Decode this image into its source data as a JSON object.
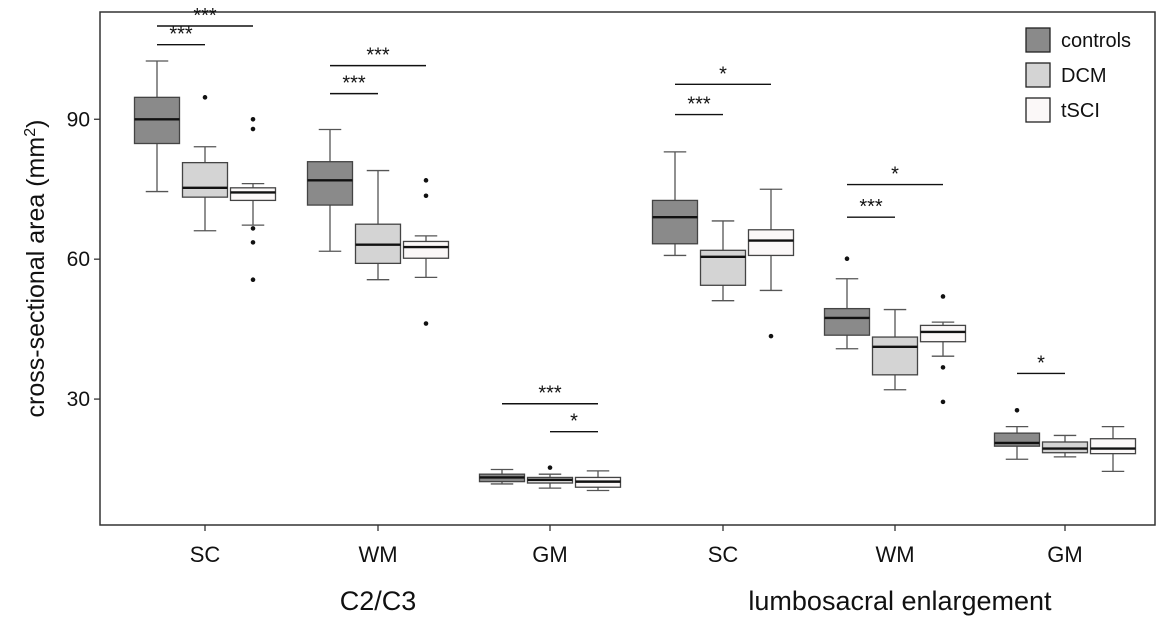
{
  "chart_data": {
    "type": "box",
    "ylabel": "cross-sectional area (mm",
    "ylabel_sup": "2",
    "ylabel_close": ")",
    "ylim": [
      3,
      113
    ],
    "yticks": [
      30,
      60,
      90
    ],
    "grid": false,
    "legend_position": "top-right",
    "series": [
      {
        "name": "controls",
        "color": "#8a8a8a"
      },
      {
        "name": "DCM",
        "color": "#d4d4d4"
      },
      {
        "name": "tSCI",
        "color": "#fbf8f8"
      }
    ],
    "regions": [
      "C2/C3",
      "lumbosacral enlargement"
    ],
    "categories": [
      "SC",
      "WM",
      "GM",
      "SC",
      "WM",
      "GM"
    ],
    "groups": [
      {
        "label": "SC",
        "region": "C2/C3",
        "boxes": [
          {
            "series": "controls",
            "whisker_low": 74.5,
            "q1": 84.8,
            "median": 90,
            "q3": 94.7,
            "whisker_high": 102.5,
            "outliers": []
          },
          {
            "series": "DCM",
            "whisker_low": 66.1,
            "q1": 73.3,
            "median": 75.3,
            "q3": 80.7,
            "whisker_high": 84.1,
            "outliers": [
              94.7
            ]
          },
          {
            "series": "tSCI",
            "whisker_low": 67.3,
            "q1": 72.6,
            "median": 74.3,
            "q3": 75.3,
            "whisker_high": 76.2,
            "outliers": [
              90.0,
              87.9,
              66.6,
              63.6,
              55.6
            ]
          }
        ]
      },
      {
        "label": "WM",
        "region": "C2/C3",
        "boxes": [
          {
            "series": "controls",
            "whisker_low": 61.7,
            "q1": 71.6,
            "median": 76.9,
            "q3": 80.9,
            "whisker_high": 87.8,
            "outliers": []
          },
          {
            "series": "DCM",
            "whisker_low": 55.6,
            "q1": 59.1,
            "median": 63.1,
            "q3": 67.5,
            "whisker_high": 79.0,
            "outliers": []
          },
          {
            "series": "tSCI",
            "whisker_low": 56.1,
            "q1": 60.2,
            "median": 62.6,
            "q3": 63.8,
            "whisker_high": 65.0,
            "outliers": [
              76.9,
              73.6,
              46.2
            ]
          }
        ]
      },
      {
        "label": "GM",
        "region": "C2/C3",
        "boxes": [
          {
            "series": "controls",
            "whisker_low": 11.8,
            "q1": 12.3,
            "median": 13.2,
            "q3": 13.9,
            "whisker_high": 14.9,
            "outliers": []
          },
          {
            "series": "DCM",
            "whisker_low": 10.9,
            "q1": 12.0,
            "median": 12.7,
            "q3": 13.2,
            "whisker_high": 13.9,
            "outliers": [
              15.3
            ]
          },
          {
            "series": "tSCI",
            "whisker_low": 10.4,
            "q1": 11.1,
            "median": 12.3,
            "q3": 13.2,
            "whisker_high": 14.6,
            "outliers": []
          }
        ]
      },
      {
        "label": "SC",
        "region": "lumbosacral enlargement",
        "boxes": [
          {
            "series": "controls",
            "whisker_low": 60.8,
            "q1": 63.3,
            "median": 69.0,
            "q3": 72.6,
            "whisker_high": 83.0,
            "outliers": []
          },
          {
            "series": "DCM",
            "whisker_low": 51.1,
            "q1": 54.4,
            "median": 60.5,
            "q3": 61.9,
            "whisker_high": 68.2,
            "outliers": []
          },
          {
            "series": "tSCI",
            "whisker_low": 53.3,
            "q1": 60.8,
            "median": 64.0,
            "q3": 66.3,
            "whisker_high": 75.0,
            "outliers": [
              43.5
            ]
          }
        ]
      },
      {
        "label": "WM",
        "region": "lumbosacral enlargement",
        "boxes": [
          {
            "series": "controls",
            "whisker_low": 40.8,
            "q1": 43.7,
            "median": 47.4,
            "q3": 49.4,
            "whisker_high": 55.8,
            "outliers": [
              60.1
            ]
          },
          {
            "series": "DCM",
            "whisker_low": 32.0,
            "q1": 35.2,
            "median": 41.2,
            "q3": 43.3,
            "whisker_high": 49.2,
            "outliers": []
          },
          {
            "series": "tSCI",
            "whisker_low": 39.2,
            "q1": 42.3,
            "median": 44.4,
            "q3": 45.8,
            "whisker_high": 46.5,
            "outliers": [
              52.0,
              36.8,
              29.4
            ]
          }
        ]
      },
      {
        "label": "GM",
        "region": "lumbosacral enlargement",
        "boxes": [
          {
            "series": "controls",
            "whisker_low": 17.1,
            "q1": 19.9,
            "median": 20.6,
            "q3": 22.7,
            "whisker_high": 24.1,
            "outliers": [
              27.6
            ]
          },
          {
            "series": "DCM",
            "whisker_low": 17.6,
            "q1": 18.5,
            "median": 19.4,
            "q3": 20.8,
            "whisker_high": 22.2,
            "outliers": []
          },
          {
            "series": "tSCI",
            "whisker_low": 14.5,
            "q1": 18.3,
            "median": 19.4,
            "q3": 21.5,
            "whisker_high": 24.1,
            "outliers": []
          }
        ]
      }
    ],
    "significance": [
      {
        "group": 0,
        "from": "controls",
        "to": "tSCI",
        "label": "***",
        "y": 110.0
      },
      {
        "group": 0,
        "from": "controls",
        "to": "DCM",
        "label": "***",
        "y": 106.0
      },
      {
        "group": 1,
        "from": "controls",
        "to": "tSCI",
        "label": "***",
        "y": 101.5
      },
      {
        "group": 1,
        "from": "controls",
        "to": "DCM",
        "label": "***",
        "y": 95.5
      },
      {
        "group": 2,
        "from": "controls",
        "to": "tSCI",
        "label": "***",
        "y": 29.0
      },
      {
        "group": 2,
        "from": "DCM",
        "to": "tSCI",
        "label": "*",
        "y": 23.0
      },
      {
        "group": 3,
        "from": "controls",
        "to": "tSCI",
        "label": "*",
        "y": 97.5
      },
      {
        "group": 3,
        "from": "controls",
        "to": "DCM",
        "label": "***",
        "y": 91.0
      },
      {
        "group": 4,
        "from": "controls",
        "to": "tSCI",
        "label": "*",
        "y": 76.0
      },
      {
        "group": 4,
        "from": "controls",
        "to": "DCM",
        "label": "***",
        "y": 69.0
      },
      {
        "group": 5,
        "from": "controls",
        "to": "DCM",
        "label": "*",
        "y": 35.5
      }
    ]
  }
}
